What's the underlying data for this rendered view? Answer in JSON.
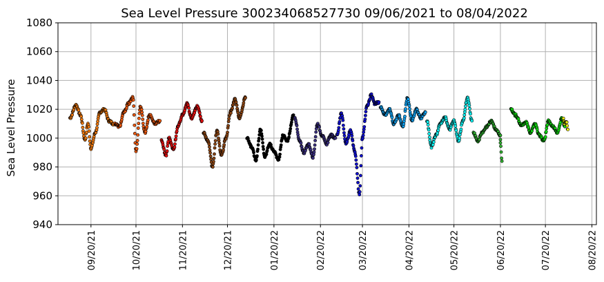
{
  "chart_data": {
    "type": "scatter",
    "title": "Sea Level Pressure 300234068527730  09/06/2021 to 08/04/2022",
    "xlabel": "",
    "ylabel": "Sea Level Pressure",
    "ylim": [
      940,
      1080
    ],
    "yticks": [
      940,
      960,
      980,
      1000,
      1020,
      1040,
      1060,
      1080
    ],
    "xlim": [
      "2021-08-29",
      "2022-08-23"
    ],
    "xticks": [
      {
        "date": "2021-09-20",
        "label": "09/20/21"
      },
      {
        "date": "2021-10-20",
        "label": "10/20/21"
      },
      {
        "date": "2021-11-20",
        "label": "11/20/21"
      },
      {
        "date": "2021-12-20",
        "label": "12/20/21"
      },
      {
        "date": "2022-01-20",
        "label": "01/20/22"
      },
      {
        "date": "2022-02-20",
        "label": "02/20/22"
      },
      {
        "date": "2022-03-20",
        "label": "03/20/22"
      },
      {
        "date": "2022-04-20",
        "label": "04/20/22"
      },
      {
        "date": "2022-05-20",
        "label": "05/20/22"
      },
      {
        "date": "2022-06-20",
        "label": "06/20/22"
      },
      {
        "date": "2022-07-20",
        "label": "07/20/22"
      },
      {
        "date": "2022-08-20",
        "label": "08/20/22"
      }
    ],
    "grid": true,
    "marker_edge_color": "#000000",
    "series": [
      {
        "color": "#f07a10",
        "x": [
          "2021-09-06",
          "2021-09-10",
          "2021-09-13",
          "2021-09-16",
          "2021-09-18",
          "2021-09-20",
          "2021-09-23",
          "2021-09-26",
          "2021-09-29",
          "2021-10-02",
          "2021-10-05"
        ],
        "y": [
          1014,
          1023,
          1016,
          999,
          1010,
          993,
          1004,
          1018,
          1020,
          1012,
          1010
        ]
      },
      {
        "color": "#f05a10",
        "x": [
          "2021-10-06",
          "2021-10-09",
          "2021-10-12",
          "2021-10-15",
          "2021-10-18",
          "2021-10-20",
          "2021-10-23",
          "2021-10-26",
          "2021-10-29",
          "2021-11-02",
          "2021-11-05"
        ],
        "y": [
          1010,
          1008,
          1018,
          1024,
          1028,
          991,
          1022,
          1004,
          1016,
          1010,
          1012
        ]
      },
      {
        "color": "#e81010",
        "x": [
          "2021-11-06",
          "2021-11-09",
          "2021-11-11",
          "2021-11-14",
          "2021-11-17",
          "2021-11-20",
          "2021-11-23",
          "2021-11-26",
          "2021-11-30",
          "2021-12-03"
        ],
        "y": [
          998,
          988,
          1000,
          992,
          1008,
          1016,
          1024,
          1014,
          1022,
          1012
        ]
      },
      {
        "color": "#8b4513",
        "x": [
          "2021-12-04",
          "2021-12-07",
          "2021-12-10",
          "2021-12-13",
          "2021-12-16",
          "2021-12-19",
          "2021-12-22",
          "2021-12-25",
          "2021-12-28",
          "2022-01-01"
        ],
        "y": [
          1004,
          998,
          980,
          1005,
          988,
          1000,
          1018,
          1027,
          1014,
          1028
        ]
      },
      {
        "color": "#000000",
        "x": [
          "2022-01-02",
          "2022-01-05",
          "2022-01-08",
          "2022-01-11",
          "2022-01-14",
          "2022-01-17",
          "2022-01-20",
          "2022-01-23",
          "2022-01-26",
          "2022-01-29",
          "2022-02-02"
        ],
        "y": [
          1000,
          994,
          985,
          1006,
          987,
          996,
          991,
          985,
          1002,
          998,
          1016
        ]
      },
      {
        "color": "#3b3080",
        "x": [
          "2022-02-03",
          "2022-02-06",
          "2022-02-09",
          "2022-02-12",
          "2022-02-15",
          "2022-02-18",
          "2022-02-21",
          "2022-02-24",
          "2022-02-27",
          "2022-03-02"
        ],
        "y": [
          1014,
          998,
          990,
          996,
          987,
          1010,
          1002,
          996,
          1002,
          1000
        ]
      },
      {
        "color": "#1010d0",
        "x": [
          "2022-03-03",
          "2022-03-06",
          "2022-03-09",
          "2022-03-12",
          "2022-03-15",
          "2022-03-18",
          "2022-03-20",
          "2022-03-23",
          "2022-03-26",
          "2022-03-28",
          "2022-03-31"
        ],
        "y": [
          1002,
          1017,
          996,
          1005,
          990,
          961,
          1000,
          1022,
          1030,
          1024,
          1025
        ]
      },
      {
        "color": "#10a0f0",
        "x": [
          "2022-04-01",
          "2022-04-04",
          "2022-04-07",
          "2022-04-10",
          "2022-04-13",
          "2022-04-16",
          "2022-04-19",
          "2022-04-22",
          "2022-04-25",
          "2022-04-28",
          "2022-05-01"
        ],
        "y": [
          1022,
          1016,
          1020,
          1010,
          1016,
          1008,
          1028,
          1012,
          1020,
          1014,
          1018
        ]
      },
      {
        "color": "#10f0f0",
        "x": [
          "2022-05-02",
          "2022-05-05",
          "2022-05-08",
          "2022-05-11",
          "2022-05-14",
          "2022-05-17",
          "2022-05-20",
          "2022-05-23",
          "2022-05-26",
          "2022-05-29",
          "2022-06-01"
        ],
        "y": [
          1012,
          994,
          1002,
          1010,
          1015,
          1006,
          1012,
          998,
          1012,
          1028,
          1012
        ]
      },
      {
        "color": "#30b030",
        "x": [
          "2022-06-02",
          "2022-06-05",
          "2022-06-08",
          "2022-06-11",
          "2022-06-14",
          "2022-06-17",
          "2022-06-20",
          "2022-06-20",
          "2022-06-21"
        ],
        "y": [
          1004,
          998,
          1004,
          1008,
          1012,
          1006,
          1002,
          996,
          984
        ]
      },
      {
        "color": "#10e010",
        "x": [
          "2022-06-27",
          "2022-06-30",
          "2022-07-04",
          "2022-07-07",
          "2022-07-10",
          "2022-07-13",
          "2022-07-16",
          "2022-07-19",
          "2022-07-22",
          "2022-07-25",
          "2022-07-28",
          "2022-07-31",
          "2022-08-02"
        ],
        "y": [
          1020,
          1016,
          1009,
          1011,
          1004,
          1010,
          1002,
          998,
          1012,
          1008,
          1004,
          1014,
          1008
        ]
      },
      {
        "color": "#f0f010",
        "x": [
          "2022-08-01",
          "2022-08-02",
          "2022-08-03",
          "2022-08-04"
        ],
        "y": [
          1013,
          1010,
          1012,
          1006
        ]
      }
    ]
  }
}
